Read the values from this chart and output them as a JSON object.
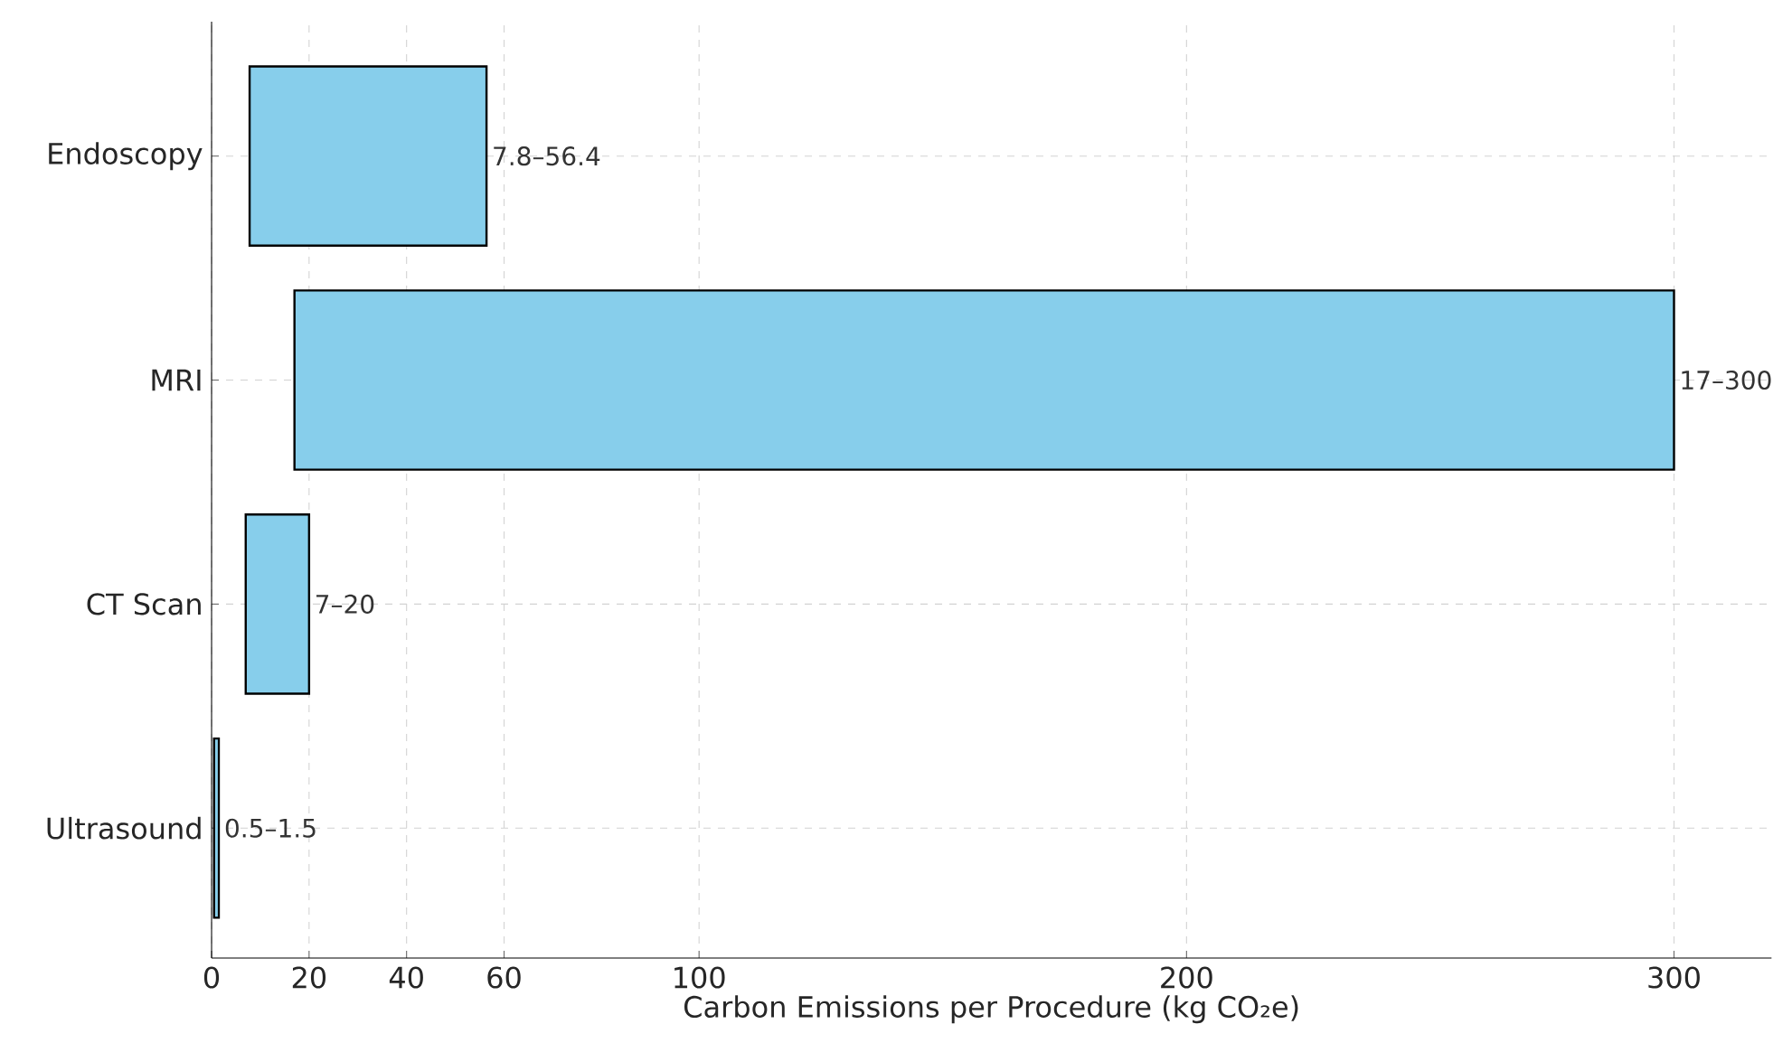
{
  "chart_data": {
    "type": "bar",
    "orientation": "horizontal",
    "xlabel": "Carbon Emissions per Procedure (kg CO₂e)",
    "categories": [
      "Endoscopy",
      "MRI",
      "CT Scan",
      "Ultrasound"
    ],
    "base": [
      7.8,
      17,
      7,
      0.5
    ],
    "values": [
      48.6,
      283,
      13,
      1.0
    ],
    "value_labels": [
      "7.8–56.4",
      "17–300",
      "7–20",
      "0.5–1.5"
    ],
    "color": "#87ceeb",
    "xlim": [
      0,
      320
    ],
    "xticks": [
      0,
      20,
      40,
      60,
      100,
      200,
      300
    ],
    "grid": true
  }
}
